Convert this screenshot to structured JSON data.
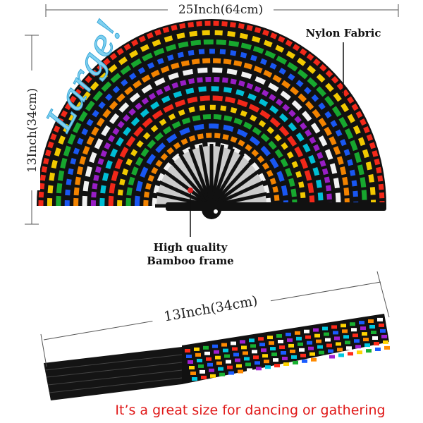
{
  "dimensions": {
    "width": "25Inch(64cm)",
    "height": "13Inch(34cm)"
  },
  "badge": "Large!",
  "labels": {
    "fabric": "Nylon Fabric",
    "frame": [
      "High quality",
      "Bamboo frame"
    ]
  },
  "closed_fan": {
    "length": "13Inch(34cm)"
  },
  "caption": "It’s a great size for dancing or gathering"
}
